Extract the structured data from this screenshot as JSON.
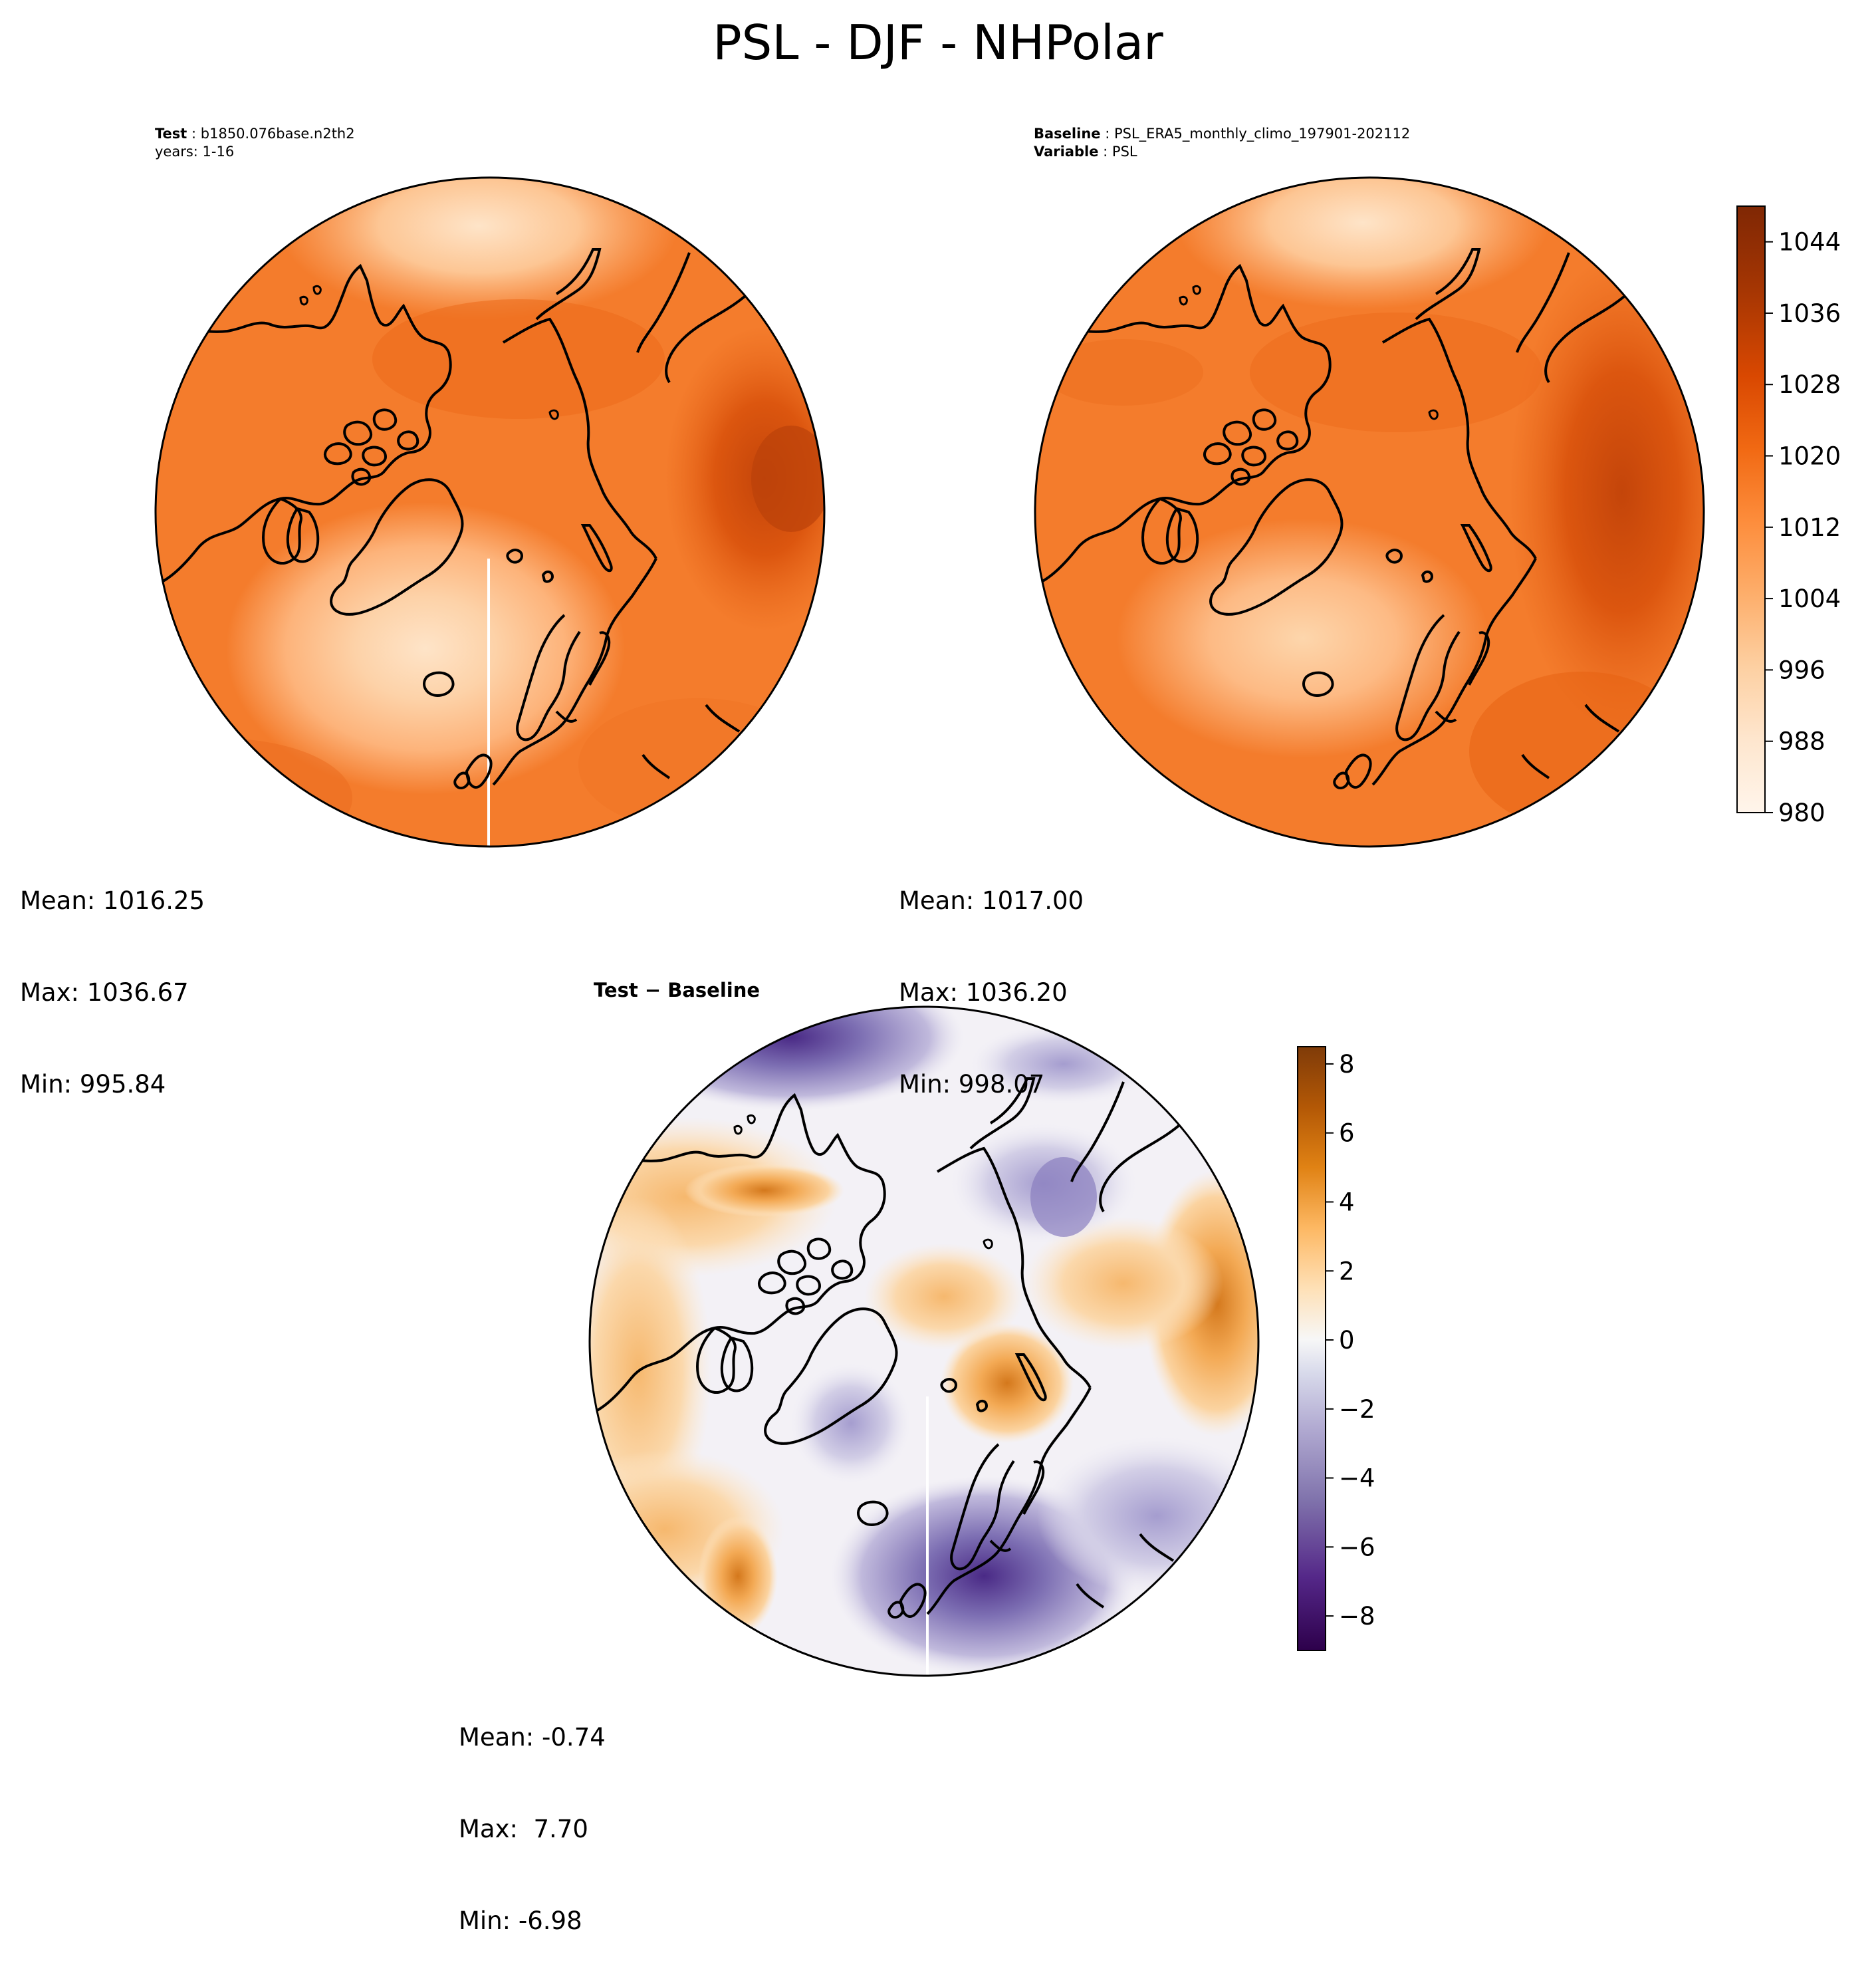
{
  "figure": {
    "title": "PSL - DJF - NHPolar"
  },
  "panels": {
    "test": {
      "label_bold": "Test",
      "label_value": "b1850.076base.n2th2",
      "line2": "years: 1-16",
      "stats": {
        "mean": "Mean: 1016.25",
        "max": "Max: 1036.67",
        "min": "Min: 995.84"
      }
    },
    "baseline": {
      "label_bold": "Baseline",
      "label_value": "PSL_ERA5_monthly_climo_197901-202112",
      "var_bold": "Variable",
      "var_value": "PSL",
      "stats": {
        "mean": "Mean: 1017.00",
        "max": "Max: 1036.20",
        "min": "Min: 998.07"
      }
    },
    "diff": {
      "title": "Test − Baseline",
      "stats": {
        "mean": "Mean: -0.74",
        "max": "Max:  7.70",
        "min": "Min: -6.98"
      }
    }
  },
  "colorbars": {
    "psl": {
      "ticks": [
        "980",
        "988",
        "996",
        "1004",
        "1012",
        "1020",
        "1028",
        "1036",
        "1044"
      ],
      "tick_values": [
        980,
        988,
        996,
        1004,
        1012,
        1020,
        1028,
        1036,
        1044
      ],
      "range": [
        980,
        1048
      ],
      "colors": [
        "#fff5eb",
        "#fee6ce",
        "#fdd0a2",
        "#fdae6b",
        "#fd8d3c",
        "#f16913",
        "#d94801",
        "#a63603",
        "#7f2704"
      ]
    },
    "diff": {
      "ticks": [
        "−8",
        "−6",
        "−4",
        "−2",
        "0",
        "2",
        "4",
        "6",
        "8"
      ],
      "tick_values": [
        -8,
        -6,
        -4,
        -2,
        0,
        2,
        4,
        6,
        8
      ],
      "range": [
        -9,
        8.5
      ],
      "colors": [
        "#2d004b",
        "#542788",
        "#8073ac",
        "#b2abd2",
        "#d8daeb",
        "#f7f7f7",
        "#fee0b6",
        "#fdb863",
        "#e08214",
        "#b35806",
        "#7f3b08"
      ]
    }
  },
  "map_colors": {
    "test": {
      "base": "#f47c2c",
      "deep": "#e05a12",
      "darker": "#c94a0c",
      "light": "#fdb37a",
      "lighter": "#fdd2a8",
      "pale": "#fee4c8"
    },
    "baseline": {
      "base": "#f47c2c",
      "deep": "#e5600f",
      "darker": "#d8540c",
      "light": "#fdba84",
      "lighter": "#fdd6ac"
    },
    "diff": {
      "neutral": "#f3f1f6",
      "orange": "#f9c27c",
      "orange_deep": "#e08a2e",
      "orange_dark": "#a55a10",
      "purple_light": "#c9c4e0",
      "purple": "#8a7fbf",
      "purple_dark": "#5b3f96"
    }
  }
}
